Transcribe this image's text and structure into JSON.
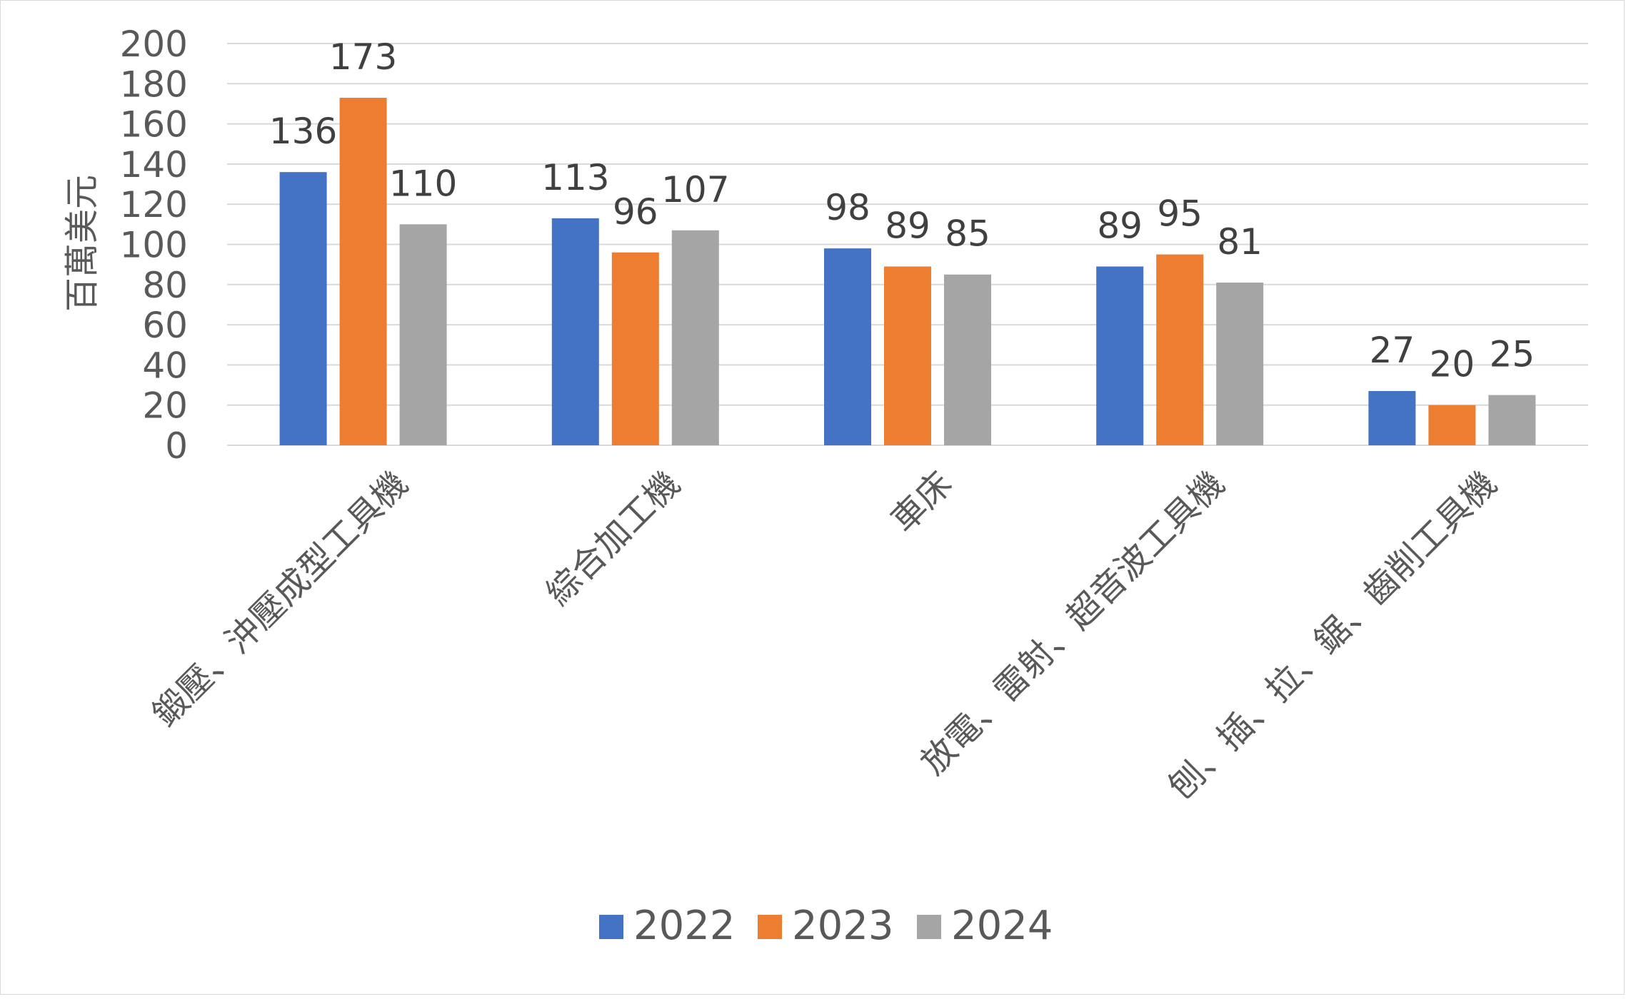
{
  "chart_data": {
    "type": "bar",
    "title": "",
    "xlabel": "",
    "ylabel": "百萬美元",
    "ylim": [
      0,
      200
    ],
    "ytick_step": 20,
    "grid": true,
    "legend_position": "bottom",
    "categories": [
      "鍛壓、沖壓成型工具機",
      "綜合加工機",
      "車床",
      "放電、雷射、超音波工具機",
      "刨、插、拉、鋸、齒削工具機"
    ],
    "series": [
      {
        "name": "2022",
        "color": "#4472C4",
        "values": [
          136,
          113,
          98,
          89,
          27
        ]
      },
      {
        "name": "2023",
        "color": "#ED7D31",
        "values": [
          173,
          96,
          89,
          95,
          20
        ]
      },
      {
        "name": "2024",
        "color": "#A5A5A5",
        "values": [
          110,
          107,
          85,
          81,
          25
        ]
      }
    ]
  }
}
